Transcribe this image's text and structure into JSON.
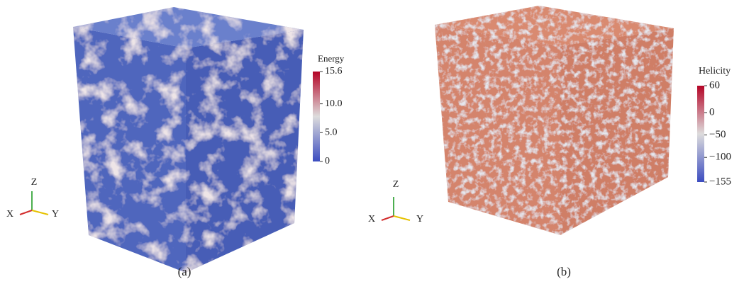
{
  "panels": [
    {
      "colorbar": {
        "title": "Energy",
        "ticks": [
          {
            "value": 15.6,
            "label": "15.6"
          },
          {
            "value": 10.0,
            "label": "10.0"
          },
          {
            "value": 5.0,
            "label": "5.0"
          },
          {
            "value": 0,
            "label": "0"
          }
        ]
      },
      "axes": {
        "z": "Z",
        "x": "X",
        "y": "Y"
      },
      "caption": "(a)"
    },
    {
      "colorbar": {
        "title": "Helicity",
        "ticks": [
          {
            "value": 60,
            "label": "60"
          },
          {
            "value": 0,
            "label": "0"
          },
          {
            "value": -50,
            "label": "−50"
          },
          {
            "value": -100,
            "label": "−100"
          },
          {
            "value": -155,
            "label": "−155"
          }
        ]
      },
      "axes": {
        "z": "Z",
        "x": "X",
        "y": "Y"
      },
      "caption": "(b)"
    }
  ]
}
